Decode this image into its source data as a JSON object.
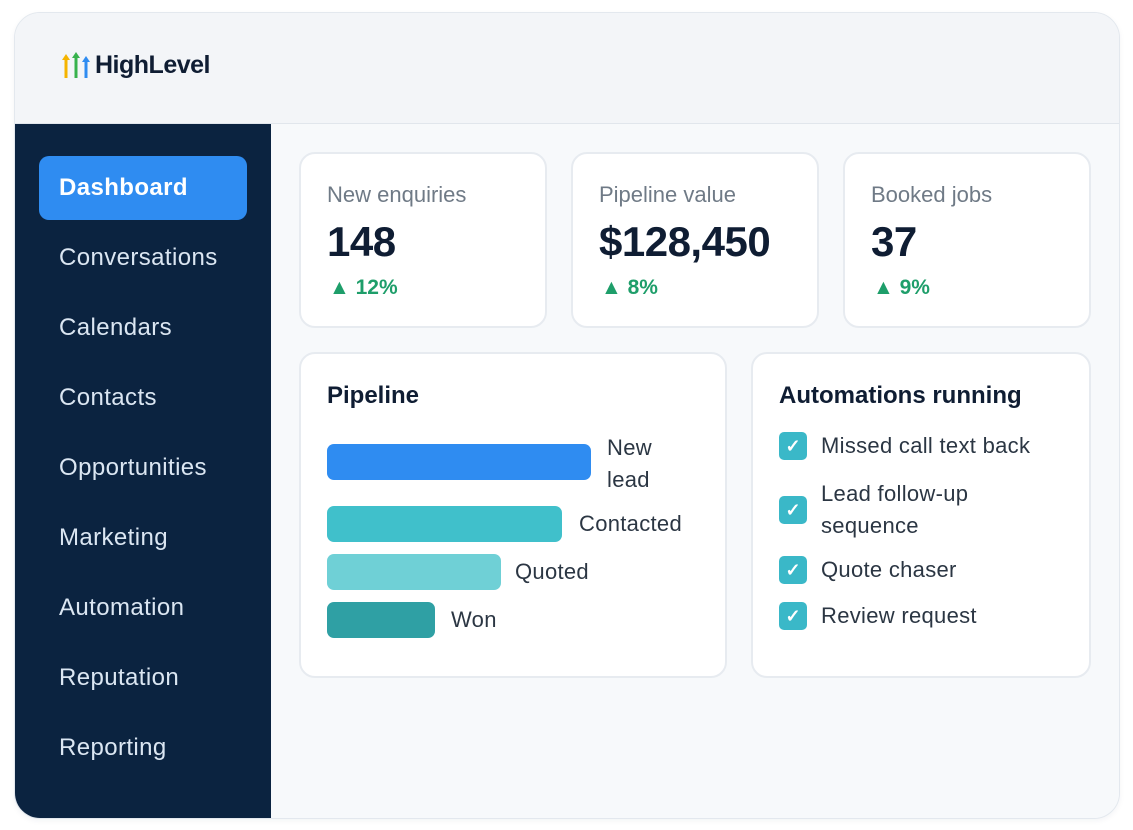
{
  "app": {
    "logo_text": "HighLevel",
    "logo_colors": [
      "#f5b400",
      "#37b24d",
      "#2f8cf1"
    ]
  },
  "sidebar": {
    "items": [
      {
        "label": "Dashboard",
        "active": true
      },
      {
        "label": "Conversations",
        "active": false
      },
      {
        "label": "Calendars",
        "active": false
      },
      {
        "label": "Contacts",
        "active": false
      },
      {
        "label": "Opportunities",
        "active": false
      },
      {
        "label": "Marketing",
        "active": false
      },
      {
        "label": "Automation",
        "active": false
      },
      {
        "label": "Reputation",
        "active": false
      },
      {
        "label": "Reporting",
        "active": false
      }
    ]
  },
  "kpis": [
    {
      "label": "New enquiries",
      "value": "148",
      "delta": "▲ 12%"
    },
    {
      "label": "Pipeline value",
      "value": "$128,450",
      "delta": "▲ 8%"
    },
    {
      "label": "Booked jobs",
      "value": "37",
      "delta": "▲ 9%"
    }
  ],
  "pipeline": {
    "title": "Pipeline",
    "stages": [
      {
        "label": "New lead",
        "relative_size": 1.0,
        "color": "#2f8cf1"
      },
      {
        "label": "Contacted",
        "relative_size": 0.89,
        "color": "#40c0cb"
      },
      {
        "label": "Quoted",
        "relative_size": 0.66,
        "color": "#6fd0d6"
      },
      {
        "label": "Won",
        "relative_size": 0.41,
        "color": "#2fa0a4"
      }
    ]
  },
  "automations": {
    "title": "Automations running",
    "items": [
      {
        "label": "Missed call text back",
        "checked": true
      },
      {
        "label": "Lead follow-up sequence",
        "checked": true
      },
      {
        "label": "Quote chaser",
        "checked": true
      },
      {
        "label": "Review request",
        "checked": true
      }
    ],
    "check_glyph": "✓"
  },
  "colors": {
    "sidebar_bg": "#0b2340",
    "accent": "#2f8cf1",
    "positive": "#1e9e6a"
  }
}
